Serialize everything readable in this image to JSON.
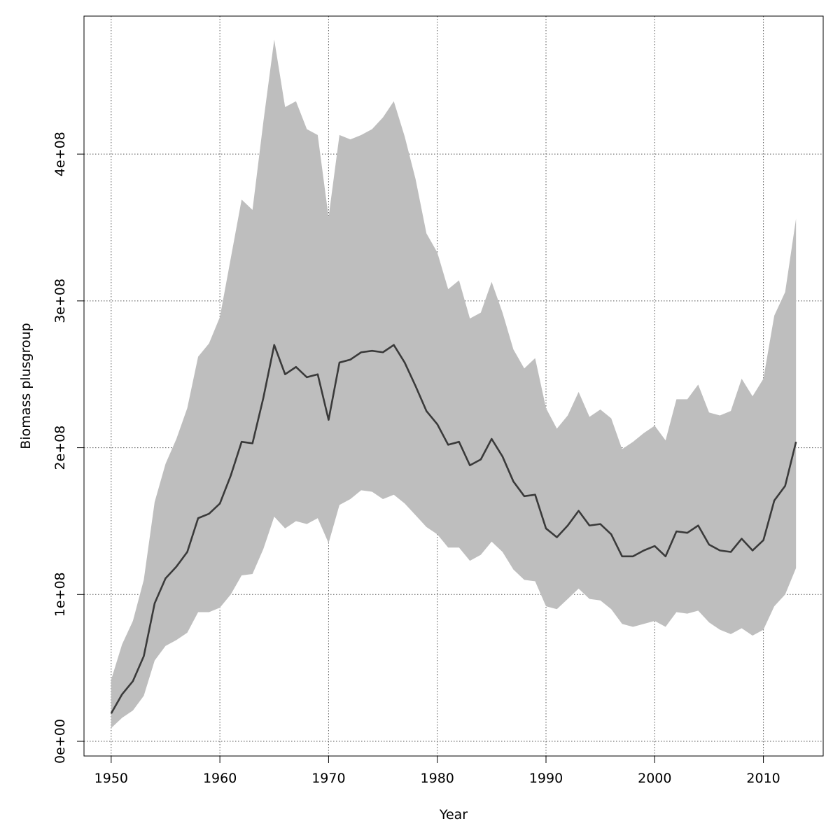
{
  "chart_data": {
    "type": "area",
    "title": "",
    "xlabel": "Year",
    "ylabel": "Biomass plusgroup",
    "xlim": [
      1947.5,
      2015.5
    ],
    "ylim": [
      -10000000,
      494000000
    ],
    "xticks": [
      1950,
      1960,
      1970,
      1980,
      1990,
      2000,
      2010
    ],
    "xtick_labels": [
      "1950",
      "1960",
      "1970",
      "1980",
      "1990",
      "2000",
      "2010"
    ],
    "yticks": [
      0,
      100000000,
      200000000,
      300000000,
      400000000
    ],
    "ytick_labels": [
      "0e+00",
      "1e+08",
      "2e+08",
      "3e+08",
      "4e+08"
    ],
    "grid": true,
    "colors": {
      "band": "#bebebe",
      "line": "#3a3a3a",
      "grid": "#555555",
      "frame": "#000000"
    },
    "x": [
      1950,
      1951,
      1952,
      1953,
      1954,
      1955,
      1956,
      1957,
      1958,
      1959,
      1960,
      1961,
      1962,
      1963,
      1964,
      1965,
      1966,
      1967,
      1968,
      1969,
      1970,
      1971,
      1972,
      1973,
      1974,
      1975,
      1976,
      1977,
      1978,
      1979,
      1980,
      1981,
      1982,
      1983,
      1984,
      1985,
      1986,
      1987,
      1988,
      1989,
      1990,
      1991,
      1992,
      1993,
      1994,
      1995,
      1996,
      1997,
      1998,
      1999,
      2000,
      2001,
      2002,
      2003,
      2004,
      2005,
      2006,
      2007,
      2008,
      2009,
      2010,
      2011,
      2012,
      2013
    ],
    "series": [
      {
        "role": "estimate",
        "values": [
          19000000,
          32000000,
          41000000,
          58000000,
          94000000,
          111000000,
          119000000,
          129000000,
          152000000,
          155000000,
          162000000,
          181000000,
          204000000,
          203000000,
          234000000,
          270000000,
          250000000,
          255000000,
          248000000,
          250000000,
          219000000,
          258000000,
          260000000,
          265000000,
          266000000,
          265000000,
          270000000,
          258000000,
          242000000,
          225000000,
          216000000,
          202000000,
          204000000,
          188000000,
          192000000,
          206000000,
          194000000,
          177000000,
          167000000,
          168000000,
          145000000,
          139000000,
          147000000,
          157000000,
          147000000,
          148000000,
          141000000,
          126000000,
          126000000,
          130000000,
          133000000,
          126000000,
          143000000,
          142000000,
          147000000,
          134000000,
          130000000,
          129000000,
          138000000,
          130000000,
          137000000,
          164000000,
          174000000,
          204000000
        ]
      },
      {
        "role": "upper",
        "values": [
          42000000,
          66000000,
          82000000,
          110000000,
          163000000,
          189000000,
          206000000,
          227000000,
          262000000,
          271000000,
          289000000,
          329000000,
          369000000,
          362000000,
          422000000,
          478000000,
          432000000,
          436000000,
          417000000,
          413000000,
          357000000,
          413000000,
          410000000,
          413000000,
          417000000,
          425000000,
          436000000,
          412000000,
          383000000,
          346000000,
          333000000,
          308000000,
          314000000,
          288000000,
          292000000,
          313000000,
          292000000,
          267000000,
          254000000,
          261000000,
          227000000,
          213000000,
          222000000,
          238000000,
          221000000,
          226000000,
          220000000,
          199000000,
          204000000,
          210000000,
          215000000,
          205000000,
          233000000,
          233000000,
          243000000,
          224000000,
          222000000,
          225000000,
          247000000,
          235000000,
          247000000,
          290000000,
          306000000,
          356000000
        ]
      },
      {
        "role": "lower",
        "values": [
          9000000,
          16000000,
          21000000,
          31000000,
          55000000,
          65000000,
          69000000,
          74000000,
          88000000,
          88000000,
          91000000,
          100000000,
          113000000,
          114000000,
          131000000,
          153000000,
          145000000,
          150000000,
          148000000,
          152000000,
          135000000,
          161000000,
          165000000,
          171000000,
          170000000,
          165000000,
          168000000,
          162000000,
          154000000,
          146000000,
          141000000,
          132000000,
          132000000,
          123000000,
          127000000,
          136000000,
          129000000,
          117000000,
          110000000,
          109000000,
          92000000,
          90000000,
          97000000,
          104000000,
          97000000,
          96000000,
          90000000,
          80000000,
          78000000,
          80000000,
          82000000,
          78000000,
          88000000,
          87000000,
          89000000,
          81000000,
          76000000,
          73000000,
          77000000,
          72000000,
          76000000,
          92000000,
          100000000,
          118000000
        ]
      }
    ]
  }
}
